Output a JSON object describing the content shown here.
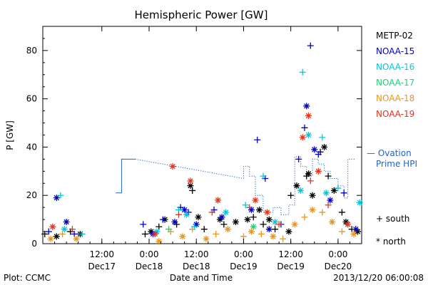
{
  "chart_data": {
    "type": "scatter",
    "title": "Hemispheric Power [GW]",
    "xlabel": "Date and Time",
    "ylabel": "P [GW]",
    "xlim": [
      "2013-12-16 21:00",
      "2013-12-20 06:00"
    ],
    "ylim": [
      0,
      90
    ],
    "y_ticks": [
      0,
      20,
      40,
      60,
      80
    ],
    "x_ticks": [
      {
        "t": "2013-12-17 12:00",
        "l1": "12:00",
        "l2": "Dec17"
      },
      {
        "t": "2013-12-18 00:00",
        "l1": "0:00",
        "l2": "Dec18"
      },
      {
        "t": "2013-12-18 12:00",
        "l1": "12:00",
        "l2": "Dec18"
      },
      {
        "t": "2013-12-19 00:00",
        "l1": "0:00",
        "l2": "Dec19"
      },
      {
        "t": "2013-12-19 12:00",
        "l1": "12:00",
        "l2": "Dec19"
      },
      {
        "t": "2013-12-20 00:00",
        "l1": "0:00",
        "l2": "Dec20"
      }
    ],
    "grid": false,
    "legend_position": "right",
    "markers": {
      "south": "+",
      "north": "*"
    },
    "marker_legend": {
      "south": "+ south",
      "north": "* north"
    },
    "series": [
      {
        "name": "METP-02",
        "color": "#000000",
        "points": [
          [
            "2013-12-16 21:30",
            4,
            "s"
          ],
          [
            "2013-12-17 00:30",
            3,
            "n"
          ],
          [
            "2013-12-17 04:00",
            5,
            "s"
          ],
          [
            "2013-12-17 06:30",
            4,
            "n"
          ],
          [
            "2013-12-17 23:00",
            4,
            "s"
          ],
          [
            "2013-12-18 00:30",
            5,
            "n"
          ],
          [
            "2013-12-18 02:30",
            7,
            "s"
          ],
          [
            "2013-12-18 04:00",
            10,
            "n"
          ],
          [
            "2013-12-18 07:00",
            8,
            "s"
          ],
          [
            "2013-12-18 10:30",
            24,
            "n"
          ],
          [
            "2013-12-18 11:00",
            22,
            "s"
          ],
          [
            "2013-12-18 12:30",
            11,
            "n"
          ],
          [
            "2013-12-18 14:00",
            6,
            "s"
          ],
          [
            "2013-12-18 18:00",
            10,
            "n"
          ],
          [
            "2013-12-18 19:00",
            8,
            "s"
          ],
          [
            "2013-12-18 22:00",
            9,
            "n"
          ],
          [
            "2013-12-19 01:00",
            10,
            "n"
          ],
          [
            "2013-12-19 02:30",
            11,
            "s"
          ],
          [
            "2013-12-19 04:00",
            14,
            "n"
          ],
          [
            "2013-12-19 05:00",
            8,
            "s"
          ],
          [
            "2013-12-19 06:30",
            10,
            "n"
          ],
          [
            "2013-12-19 08:00",
            6,
            "s"
          ],
          [
            "2013-12-19 11:30",
            5,
            "n"
          ],
          [
            "2013-12-19 12:00",
            20,
            "s"
          ],
          [
            "2013-12-19 13:30",
            24,
            "n"
          ],
          [
            "2013-12-19 16:30",
            29,
            "n"
          ],
          [
            "2013-12-19 16:00",
            28,
            "s"
          ],
          [
            "2013-12-19 17:30",
            20,
            "n"
          ],
          [
            "2013-12-19 19:30",
            38,
            "s"
          ],
          [
            "2013-12-19 20:30",
            40,
            "n"
          ],
          [
            "2013-12-19 21:30",
            28,
            "s"
          ],
          [
            "2013-12-19 23:00",
            22,
            "n"
          ],
          [
            "2013-12-20 01:00",
            13,
            "s"
          ],
          [
            "2013-12-20 02:00",
            9,
            "n"
          ],
          [
            "2013-12-20 03:30",
            6,
            "s"
          ],
          [
            "2013-12-20 05:00",
            5,
            "n"
          ]
        ]
      },
      {
        "name": "NOAA-15",
        "color": "#0000c8",
        "points": [
          [
            "2013-12-16 22:30",
            5,
            "s"
          ],
          [
            "2013-12-17 00:30",
            19,
            "n"
          ],
          [
            "2013-12-17 03:00",
            9,
            "n"
          ],
          [
            "2013-12-17 05:00",
            4,
            "s"
          ],
          [
            "2013-12-17 22:30",
            8,
            "s"
          ],
          [
            "2013-12-18 01:00",
            4,
            "n"
          ],
          [
            "2013-12-18 03:30",
            10,
            "s"
          ],
          [
            "2013-12-18 06:30",
            9,
            "n"
          ],
          [
            "2013-12-18 08:00",
            15,
            "s"
          ],
          [
            "2013-12-18 09:00",
            14,
            "n"
          ],
          [
            "2013-12-18 10:00",
            13,
            "s"
          ],
          [
            "2013-12-18 12:00",
            8,
            "n"
          ],
          [
            "2013-12-18 16:30",
            14,
            "s"
          ],
          [
            "2013-12-18 18:30",
            11,
            "n"
          ],
          [
            "2013-12-19 02:00",
            14,
            "n"
          ],
          [
            "2013-12-19 03:30",
            43,
            "s"
          ],
          [
            "2013-12-19 05:30",
            27,
            "s"
          ],
          [
            "2013-12-19 06:30",
            6,
            "n"
          ],
          [
            "2013-12-19 09:30",
            8,
            "s"
          ],
          [
            "2013-12-19 14:00",
            35,
            "s"
          ],
          [
            "2013-12-19 15:30",
            48,
            "s"
          ],
          [
            "2013-12-19 16:00",
            57,
            "n"
          ],
          [
            "2013-12-19 17:00",
            82,
            "s"
          ],
          [
            "2013-12-19 18:00",
            39,
            "n"
          ],
          [
            "2013-12-19 19:00",
            37,
            "s"
          ],
          [
            "2013-12-19 22:00",
            18,
            "n"
          ],
          [
            "2013-12-20 01:30",
            21,
            "s"
          ],
          [
            "2013-12-20 04:30",
            6,
            "n"
          ]
        ]
      },
      {
        "name": "NOAA-16",
        "color": "#00c8dc",
        "points": [
          [
            "2013-12-17 01:30",
            20,
            "s"
          ],
          [
            "2013-12-17 02:30",
            6,
            "n"
          ],
          [
            "2013-12-17 07:00",
            4,
            "s"
          ],
          [
            "2013-12-18 02:00",
            5,
            "n"
          ],
          [
            "2013-12-18 07:30",
            14,
            "s"
          ],
          [
            "2013-12-18 09:30",
            12,
            "n"
          ],
          [
            "2013-12-18 11:30",
            7,
            "s"
          ],
          [
            "2013-12-18 19:30",
            13,
            "n"
          ],
          [
            "2013-12-19 00:30",
            16,
            "s"
          ],
          [
            "2013-12-19 05:00",
            28,
            "s"
          ],
          [
            "2013-12-19 08:00",
            9,
            "n"
          ],
          [
            "2013-12-19 14:30",
            22,
            "n"
          ],
          [
            "2013-12-19 15:00",
            71,
            "s"
          ],
          [
            "2013-12-19 16:30",
            45,
            "n"
          ],
          [
            "2013-12-19 20:00",
            44,
            "s"
          ],
          [
            "2013-12-19 21:00",
            21,
            "n"
          ],
          [
            "2013-12-20 00:00",
            23,
            "s"
          ],
          [
            "2013-12-20 05:30",
            17,
            "n"
          ]
        ]
      },
      {
        "name": "NOAA-17",
        "color": "#1ed278",
        "points": [
          [
            "2013-12-18 05:00",
            6,
            "s"
          ],
          [
            "2013-12-19 02:30",
            7,
            "n"
          ]
        ]
      },
      {
        "name": "NOAA-18",
        "color": "#e6961e",
        "points": [
          [
            "2013-12-16 23:00",
            2,
            "n"
          ],
          [
            "2013-12-17 02:00",
            4,
            "s"
          ],
          [
            "2013-12-17 05:30",
            2,
            "n"
          ],
          [
            "2013-12-18 02:30",
            1,
            "n"
          ],
          [
            "2013-12-18 05:30",
            5,
            "s"
          ],
          [
            "2013-12-18 08:30",
            3,
            "n"
          ],
          [
            "2013-12-18 11:00",
            6,
            "s"
          ],
          [
            "2013-12-18 14:30",
            2,
            "n"
          ],
          [
            "2013-12-18 17:00",
            4,
            "s"
          ],
          [
            "2013-12-18 20:00",
            6,
            "n"
          ],
          [
            "2013-12-19 00:00",
            3,
            "s"
          ],
          [
            "2013-12-19 02:00",
            5,
            "n"
          ],
          [
            "2013-12-19 04:30",
            4,
            "s"
          ],
          [
            "2013-12-19 07:30",
            3,
            "n"
          ],
          [
            "2013-12-19 10:00",
            2,
            "s"
          ],
          [
            "2013-12-19 13:00",
            8,
            "n"
          ],
          [
            "2013-12-19 15:30",
            11,
            "s"
          ],
          [
            "2013-12-19 17:30",
            14,
            "n"
          ],
          [
            "2013-12-19 20:00",
            13,
            "s"
          ],
          [
            "2013-12-19 22:30",
            9,
            "n"
          ],
          [
            "2013-12-20 01:00",
            5,
            "s"
          ],
          [
            "2013-12-20 04:00",
            4,
            "n"
          ]
        ]
      },
      {
        "name": "NOAA-19",
        "color": "#e6321e",
        "points": [
          [
            "2013-12-16 23:30",
            7,
            "n"
          ],
          [
            "2013-12-17 04:30",
            6,
            "s"
          ],
          [
            "2013-12-18 01:30",
            4,
            "n"
          ],
          [
            "2013-12-18 06:00",
            32,
            "n"
          ],
          [
            "2013-12-18 07:30",
            12,
            "s"
          ],
          [
            "2013-12-18 10:30",
            26,
            "n"
          ],
          [
            "2013-12-18 17:30",
            18,
            "n"
          ],
          [
            "2013-12-18 16:00",
            13,
            "s"
          ],
          [
            "2013-12-19 01:30",
            15,
            "s"
          ],
          [
            "2013-12-19 03:00",
            18,
            "n"
          ],
          [
            "2013-12-19 06:00",
            13,
            "n"
          ],
          [
            "2013-12-19 09:00",
            8,
            "s"
          ],
          [
            "2013-12-19 15:00",
            44,
            "n"
          ],
          [
            "2013-12-19 16:30",
            53,
            "n"
          ],
          [
            "2013-12-19 17:00",
            26,
            "s"
          ],
          [
            "2013-12-19 19:00",
            30,
            "n"
          ],
          [
            "2013-12-19 21:30",
            16,
            "s"
          ],
          [
            "2013-12-20 02:30",
            8,
            "n"
          ]
        ]
      }
    ],
    "ovation_prime": {
      "name": "Ovation Prime HPI",
      "label_line1": "— Ovation",
      "label_line2": "Prime HPI",
      "color": "#1e64c8",
      "segments": [
        {
          "style": "solid",
          "points": [
            [
              "2013-12-17 15:30",
              21
            ],
            [
              "2013-12-17 17:00",
              21
            ],
            [
              "2013-12-17 17:00",
              35
            ],
            [
              "2013-12-17 20:30",
              35
            ]
          ]
        },
        {
          "style": "dotted",
          "points": [
            [
              "2013-12-17 20:30",
              35
            ],
            [
              "2013-12-19 00:00",
              27
            ]
          ]
        },
        {
          "style": "dotted",
          "points": [
            [
              "2013-12-19 00:00",
              27
            ],
            [
              "2013-12-19 00:00",
              32
            ],
            [
              "2013-12-19 01:30",
              32
            ],
            [
              "2013-12-19 01:30",
              28
            ],
            [
              "2013-12-19 03:00",
              28
            ],
            [
              "2013-12-19 03:00",
              20
            ],
            [
              "2013-12-19 05:00",
              20
            ],
            [
              "2013-12-19 05:00",
              13
            ],
            [
              "2013-12-19 07:30",
              13
            ],
            [
              "2013-12-19 07:30",
              15
            ],
            [
              "2013-12-19 09:30",
              15
            ],
            [
              "2013-12-19 09:30",
              12
            ],
            [
              "2013-12-19 11:30",
              12
            ],
            [
              "2013-12-19 11:30",
              16
            ],
            [
              "2013-12-19 13:00",
              16
            ],
            [
              "2013-12-19 13:00",
              36
            ],
            [
              "2013-12-19 14:30",
              36
            ],
            [
              "2013-12-19 14:30",
              32
            ],
            [
              "2013-12-19 16:00",
              32
            ],
            [
              "2013-12-19 16:00",
              28
            ],
            [
              "2013-12-19 17:30",
              28
            ],
            [
              "2013-12-19 17:30",
              35
            ],
            [
              "2013-12-19 19:00",
              35
            ],
            [
              "2013-12-19 19:00",
              33
            ],
            [
              "2013-12-19 20:30",
              33
            ],
            [
              "2013-12-19 20:30",
              30
            ],
            [
              "2013-12-19 22:00",
              30
            ],
            [
              "2013-12-19 22:00",
              27
            ],
            [
              "2013-12-20 00:00",
              27
            ],
            [
              "2013-12-20 00:00",
              24
            ],
            [
              "2013-12-20 01:30",
              24
            ],
            [
              "2013-12-20 01:30",
              19
            ],
            [
              "2013-12-20 02:30",
              19
            ],
            [
              "2013-12-20 02:30",
              35
            ],
            [
              "2013-12-20 04:30",
              35
            ]
          ]
        }
      ]
    }
  },
  "footer": {
    "left": "Plot: CCMC",
    "right": "2013/12/20 06:00:08"
  }
}
